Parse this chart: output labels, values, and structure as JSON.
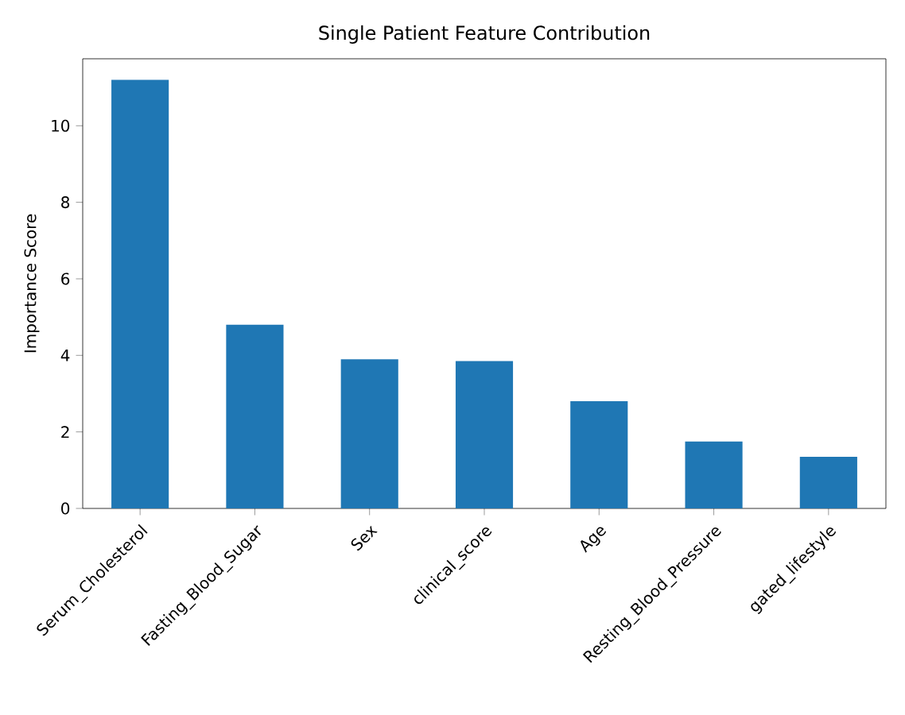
{
  "chart_data": {
    "type": "bar",
    "title": "Single Patient Feature Contribution",
    "ylabel": "Importance Score",
    "categories": [
      "Serum_Cholesterol",
      "Fasting_Blood_Sugar",
      "Sex",
      "clinical_score",
      "Age",
      "Resting_Blood_Pressure",
      "gated_lifestyle"
    ],
    "values": [
      11.2,
      4.8,
      3.9,
      3.85,
      2.8,
      1.75,
      1.35
    ],
    "color": "#1f77b4",
    "ylim": [
      0,
      11.75
    ],
    "yticks": [
      0,
      2,
      4,
      6,
      8,
      10
    ]
  }
}
